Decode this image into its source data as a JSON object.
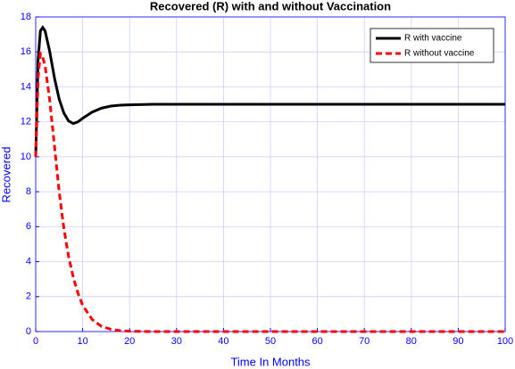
{
  "chart_data": {
    "type": "line",
    "title": "Recovered (R) with and without Vaccination",
    "xlabel": "Time In Months",
    "ylabel": "Recovered",
    "x": [
      0,
      0.5,
      1,
      1.5,
      2,
      3,
      4,
      5,
      6,
      7,
      8,
      9,
      10,
      12,
      14,
      16,
      18,
      20,
      25,
      30,
      40,
      50,
      60,
      70,
      80,
      90,
      100
    ],
    "series": [
      {
        "name": "R with vaccine",
        "color": "#000000",
        "dash": "solid",
        "values": [
          10,
          15.5,
          17.2,
          17.4,
          17.2,
          16.0,
          14.5,
          13.3,
          12.5,
          12.05,
          11.9,
          12.0,
          12.2,
          12.55,
          12.78,
          12.9,
          12.95,
          12.97,
          13,
          13,
          13,
          13,
          13,
          13,
          13,
          13,
          13
        ]
      },
      {
        "name": "R without vaccine",
        "color": "#ff0000",
        "dash": "dashed",
        "values": [
          10,
          14.5,
          15.9,
          15.7,
          15.2,
          13.2,
          10.6,
          8.0,
          5.9,
          4.3,
          3.1,
          2.2,
          1.5,
          0.7,
          0.3,
          0.13,
          0.05,
          0.02,
          0,
          0,
          0,
          0,
          0,
          0,
          0,
          0,
          0
        ]
      }
    ],
    "xlim": [
      0,
      100
    ],
    "ylim": [
      0,
      18
    ],
    "xticks": [
      0,
      10,
      20,
      30,
      40,
      50,
      60,
      70,
      80,
      90,
      100
    ],
    "yticks": [
      0,
      2,
      4,
      6,
      8,
      10,
      12,
      14,
      16,
      18
    ],
    "grid": true,
    "legend": "northeast"
  }
}
